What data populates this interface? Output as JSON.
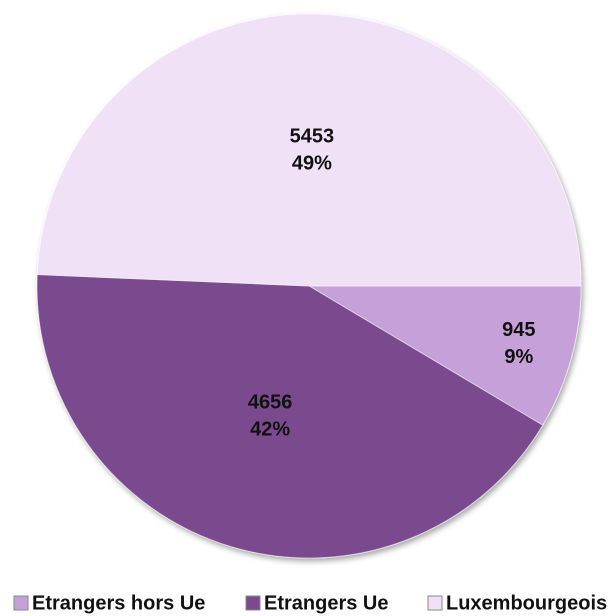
{
  "chart_data": {
    "type": "pie",
    "categories": [
      "Etrangers hors Ue",
      "Etrangers Ue",
      "Luxembourgeois"
    ],
    "values": [
      945,
      4656,
      5453
    ],
    "percent_labels": [
      "9%",
      "42%",
      "49%"
    ],
    "colors": [
      "#c6a0d8",
      "#7a4a8e",
      "#f0e1f6"
    ],
    "legend": "bottom"
  }
}
